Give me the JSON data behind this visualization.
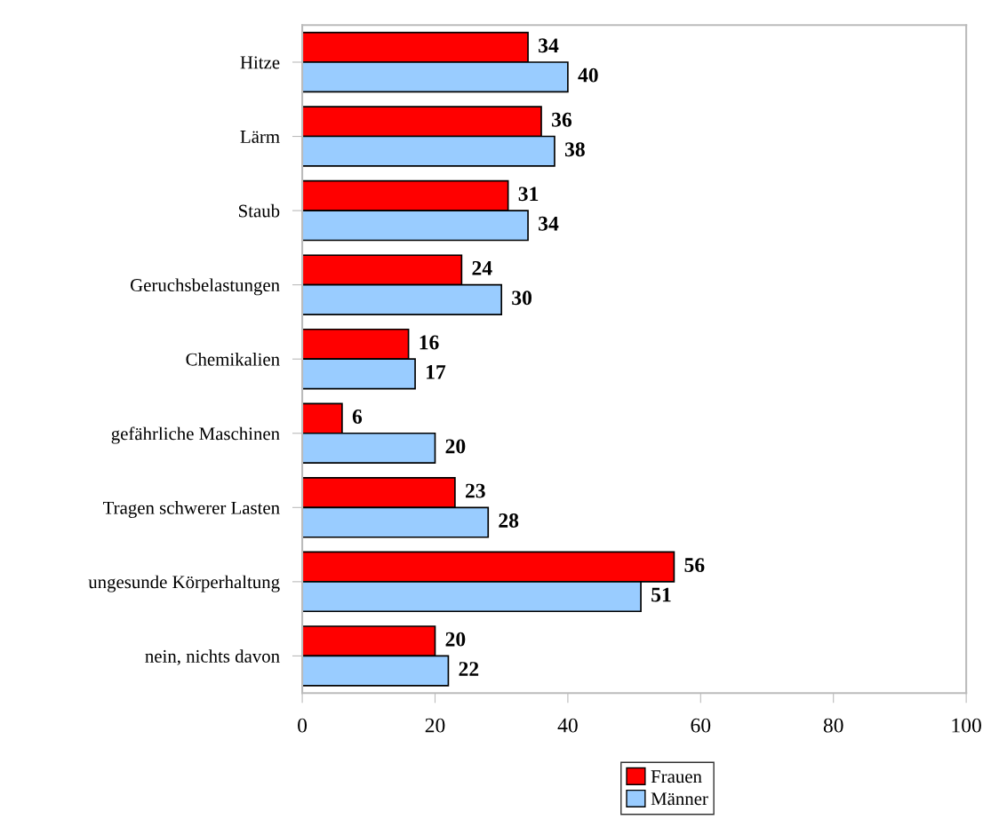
{
  "chart_data": {
    "type": "bar",
    "orientation": "horizontal",
    "categories": [
      "Hitze",
      "Lärm",
      "Staub",
      "Geruchsbelastungen",
      "Chemikalien",
      "gefährliche Maschinen",
      "Tragen schwerer Lasten",
      "ungesunde Körperhaltung",
      "nein, nichts davon"
    ],
    "series": [
      {
        "name": "Frauen",
        "color": "#ff0000",
        "values": [
          34,
          36,
          31,
          24,
          16,
          6,
          23,
          56,
          20
        ]
      },
      {
        "name": "Männer",
        "color": "#99ccff",
        "values": [
          40,
          38,
          34,
          30,
          17,
          20,
          28,
          51,
          22
        ]
      }
    ],
    "xlim": [
      0,
      100
    ],
    "xticks": [
      0,
      20,
      40,
      60,
      80,
      100
    ],
    "data_labels": true,
    "grid": false,
    "legend": "bottom"
  }
}
